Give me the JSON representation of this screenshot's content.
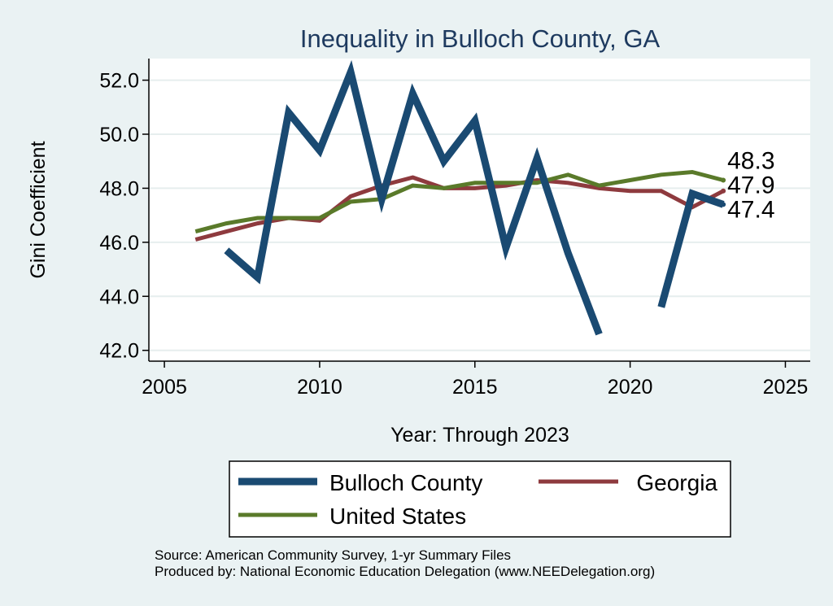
{
  "chart_data": {
    "type": "line",
    "title": "Inequality in Bulloch County, GA",
    "xlabel": "Year: Through 2023",
    "ylabel": "Gini Coefficient",
    "xlim": [
      2004.5,
      2025.8
    ],
    "ylim": [
      41.6,
      52.8
    ],
    "xticks": [
      2005,
      2010,
      2015,
      2020,
      2025
    ],
    "xtick_labels": [
      "2005",
      "2010",
      "2015",
      "2020",
      "2025"
    ],
    "yticks": [
      42,
      44,
      46,
      48,
      50,
      52
    ],
    "ytick_labels": [
      "42.0",
      "44.0",
      "46.0",
      "48.0",
      "50.0",
      "52.0"
    ],
    "grid": true,
    "series": [
      {
        "name": "Bulloch County",
        "color": "#1a4a72",
        "x": [
          2007,
          2008,
          2009,
          2010,
          2011,
          2012,
          2013,
          2014,
          2015,
          2016,
          2017,
          2018,
          2019,
          2021,
          2022,
          2023
        ],
        "values": [
          45.7,
          44.7,
          50.8,
          49.4,
          52.3,
          47.6,
          51.5,
          49.0,
          50.5,
          45.8,
          49.1,
          45.6,
          42.6,
          43.6,
          47.8,
          47.4
        ],
        "end_label": "47.4"
      },
      {
        "name": "Georgia",
        "color": "#8e3a3e",
        "x": [
          2006,
          2007,
          2008,
          2009,
          2010,
          2011,
          2012,
          2013,
          2014,
          2015,
          2016,
          2017,
          2018,
          2019,
          2020,
          2021,
          2022,
          2023
        ],
        "values": [
          46.1,
          46.4,
          46.7,
          46.9,
          46.8,
          47.7,
          48.1,
          48.4,
          48.0,
          48.0,
          48.1,
          48.3,
          48.2,
          48.0,
          47.9,
          47.9,
          47.3,
          47.9
        ],
        "end_label": "47.9"
      },
      {
        "name": "United States",
        "color": "#5a7a2a",
        "x": [
          2006,
          2007,
          2008,
          2009,
          2010,
          2011,
          2012,
          2013,
          2014,
          2015,
          2016,
          2017,
          2018,
          2019,
          2020,
          2021,
          2022,
          2023
        ],
        "values": [
          46.4,
          46.7,
          46.9,
          46.9,
          46.9,
          47.5,
          47.6,
          48.1,
          48.0,
          48.2,
          48.2,
          48.2,
          48.5,
          48.1,
          48.3,
          48.5,
          48.6,
          48.3
        ],
        "end_label": "48.3"
      }
    ],
    "legend": {
      "placement": "bottom",
      "entries": [
        "Bulloch County",
        "Georgia",
        "United States"
      ]
    },
    "notes": [
      "Source: American Community Survey, 1-yr Summary Files",
      "Produced by: National Economic Education Delegation (www.NEEDelegation.org)"
    ]
  }
}
